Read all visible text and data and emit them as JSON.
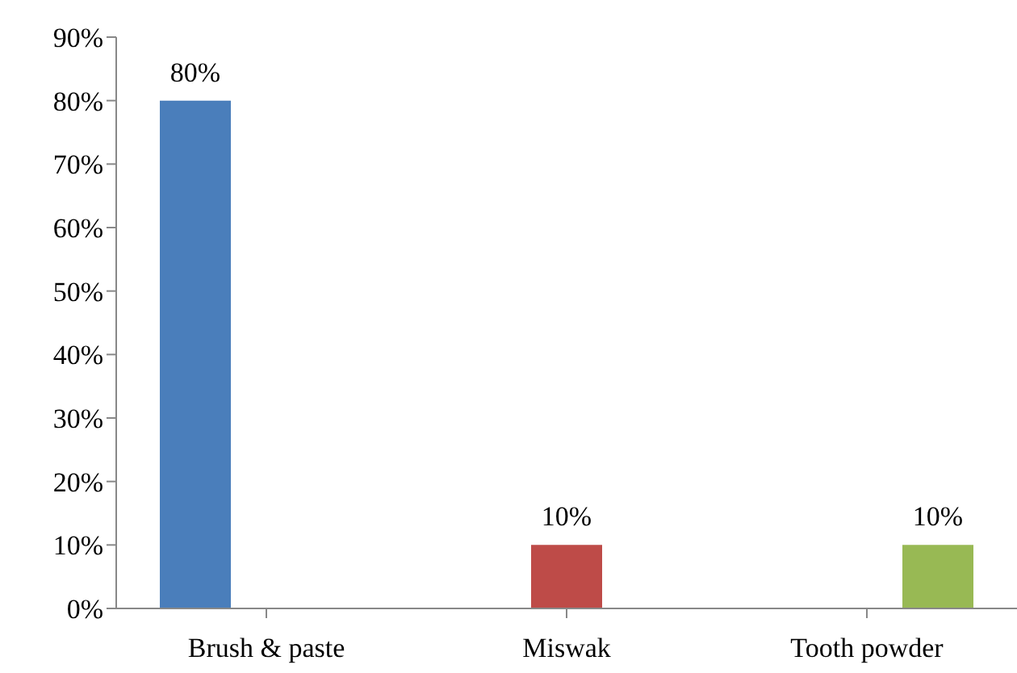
{
  "chart_data": {
    "type": "bar",
    "categories": [
      "Brush & paste",
      "Miswak",
      "Tooth powder"
    ],
    "series": [
      {
        "color": "#4a7ebb",
        "values": [
          80,
          null,
          null
        ],
        "value_labels": [
          "80%",
          null,
          null
        ]
      },
      {
        "color": "#be4b48",
        "values": [
          null,
          10,
          null
        ],
        "value_labels": [
          null,
          "10%",
          null
        ]
      },
      {
        "color": "#98b954",
        "values": [
          null,
          null,
          10
        ],
        "value_labels": [
          null,
          null,
          "10%"
        ]
      }
    ],
    "ylim": [
      0,
      90
    ],
    "yticks": [
      {
        "value": 0,
        "label": "0%"
      },
      {
        "value": 10,
        "label": "10%"
      },
      {
        "value": 20,
        "label": "20%"
      },
      {
        "value": 30,
        "label": "30%"
      },
      {
        "value": 40,
        "label": "40%"
      },
      {
        "value": 50,
        "label": "50%"
      },
      {
        "value": 60,
        "label": "60%"
      },
      {
        "value": 70,
        "label": "70%"
      },
      {
        "value": 80,
        "label": "80%"
      },
      {
        "value": 90,
        "label": "90%"
      }
    ],
    "grid": false,
    "legend": false
  }
}
